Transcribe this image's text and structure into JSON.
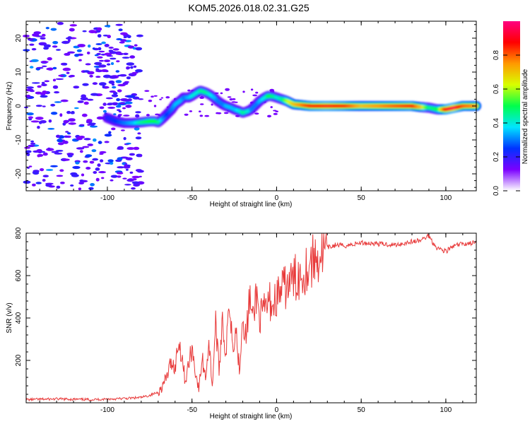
{
  "title": "KOM5.2026.018.02.31.G25",
  "chart_data": [
    {
      "type": "heatmap",
      "name": "spectrogram",
      "xlabel": "Height of straight line (km)",
      "ylabel": "Frequency (Hz)",
      "xlim": [
        -148,
        118
      ],
      "ylim": [
        -25,
        25
      ],
      "xticks": [
        -100,
        -50,
        0,
        50,
        100
      ],
      "yticks": [
        -20,
        -10,
        0,
        10,
        20
      ],
      "ridge": {
        "x": [
          -100,
          -95,
          -90,
          -85,
          -80,
          -75,
          -72,
          -70,
          -67,
          -65,
          -62,
          -60,
          -57,
          -55,
          -52,
          -50,
          -47,
          -45,
          -42,
          -40,
          -37,
          -35,
          -32,
          -30,
          -27,
          -25,
          -22,
          -20,
          -17,
          -15,
          -12,
          -10,
          -7,
          -5,
          -2,
          0,
          3,
          6,
          10,
          20,
          30,
          40,
          50,
          60,
          70,
          80,
          85,
          90,
          95,
          100,
          105,
          110,
          118
        ],
        "y": [
          -3.5,
          -4.5,
          -5,
          -5,
          -4.8,
          -4.5,
          -4.5,
          -4.8,
          -3.5,
          -2.5,
          -1,
          0.5,
          1.5,
          2.5,
          2.5,
          3,
          4,
          4.5,
          4,
          3.5,
          2.5,
          1.5,
          0.5,
          0,
          -0.5,
          -1,
          -1.5,
          -2,
          -1.5,
          -1,
          0.5,
          1.5,
          2.5,
          3,
          2.8,
          2.5,
          2,
          1.5,
          0.5,
          0,
          0,
          0,
          0,
          0,
          0,
          0,
          -0.3,
          -0.5,
          -1,
          -1,
          -0.5,
          0,
          0
        ],
        "amplitude": [
          0.2,
          0.25,
          0.3,
          0.35,
          0.45,
          0.5,
          0.5,
          0.45,
          0.3,
          0.25,
          0.3,
          0.35,
          0.35,
          0.3,
          0.35,
          0.4,
          0.4,
          0.45,
          0.45,
          0.4,
          0.35,
          0.3,
          0.3,
          0.35,
          0.35,
          0.35,
          0.4,
          0.45,
          0.4,
          0.3,
          0.3,
          0.35,
          0.4,
          0.5,
          0.45,
          0.4,
          0.45,
          0.6,
          0.7,
          0.85,
          0.9,
          0.85,
          0.7,
          0.75,
          0.8,
          0.85,
          0.7,
          0.45,
          0.5,
          0.9,
          0.95,
          0.8,
          0.75
        ]
      },
      "colorbar": {
        "label": "Normalized spectral amplitude",
        "range": [
          0,
          1
        ],
        "ticks": [
          "0.0",
          "0.2",
          "0.4",
          "0.6",
          "0.8"
        ],
        "colors": [
          "#ffffff",
          "#7b00ff",
          "#0033ff",
          "#00e5ff",
          "#00ff4c",
          "#d8ff00",
          "#ff9900",
          "#ff0000",
          "#ff0080"
        ]
      }
    },
    {
      "type": "line",
      "name": "snr",
      "xlabel": "Height of straight line (km)",
      "ylabel": "SNR (v/v)",
      "xlim": [
        -148,
        118
      ],
      "ylim": [
        0,
        800
      ],
      "xticks": [
        -100,
        -50,
        0,
        50,
        100
      ],
      "yticks": [
        200,
        400,
        600,
        800
      ],
      "color": "#e83a3a",
      "series": [
        {
          "name": "SNR",
          "x": [
            -148,
            -130,
            -110,
            -90,
            -80,
            -75,
            -70,
            -68,
            -65,
            -62,
            -60,
            -58,
            -56,
            -54,
            -52,
            -50,
            -48,
            -46,
            -44,
            -42,
            -40,
            -38,
            -36,
            -34,
            -32,
            -30,
            -28,
            -26,
            -24,
            -22,
            -20,
            -18,
            -16,
            -14,
            -12,
            -10,
            -8,
            -6,
            -4,
            -2,
            0,
            3,
            6,
            10,
            15,
            20,
            25,
            30,
            35,
            40,
            50,
            60,
            70,
            80,
            85,
            88,
            90,
            92,
            95,
            100,
            105,
            110,
            118
          ],
          "y": [
            15,
            18,
            15,
            20,
            25,
            35,
            50,
            70,
            120,
            200,
            160,
            290,
            230,
            100,
            180,
            260,
            150,
            60,
            210,
            120,
            290,
            80,
            380,
            150,
            420,
            200,
            500,
            280,
            350,
            160,
            420,
            300,
            500,
            380,
            520,
            400,
            420,
            450,
            480,
            460,
            500,
            530,
            550,
            580,
            610,
            660,
            690,
            730,
            745,
            740,
            755,
            750,
            745,
            760,
            765,
            780,
            790,
            760,
            730,
            715,
            740,
            750,
            755
          ]
        }
      ]
    }
  ]
}
